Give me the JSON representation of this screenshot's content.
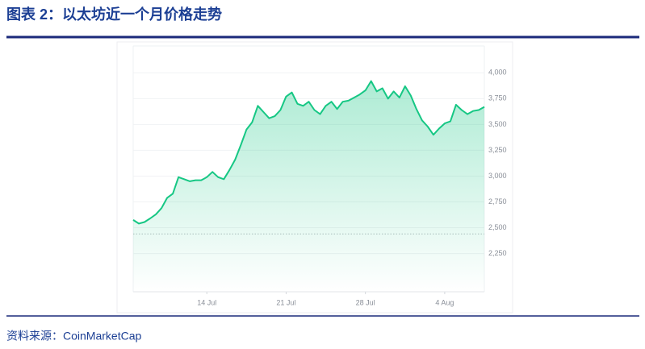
{
  "chart_data": {
    "type": "area",
    "title": "图表 2：以太坊近一个月价格走势",
    "source": "资料来源：CoinMarketCap",
    "color": "#16c784",
    "x": [
      7.5,
      8,
      8.5,
      9,
      9.5,
      10,
      10.5,
      11,
      11.5,
      12,
      12.5,
      13,
      13.5,
      14,
      14.5,
      15,
      15.5,
      16,
      16.5,
      17,
      17.5,
      18,
      18.5,
      19,
      19.5,
      20,
      20.5,
      21,
      21.5,
      22,
      22.5,
      23,
      23.5,
      24,
      24.5,
      25,
      25.5,
      26,
      26.5,
      27,
      27.5,
      28,
      28.5,
      29,
      29.5,
      30,
      30.5,
      31,
      31.5,
      32,
      32.5,
      33,
      33.5,
      34,
      34.5,
      35,
      35.5,
      36,
      36.5,
      37,
      37.5,
      38,
      38.5
    ],
    "values": [
      2575,
      2540,
      2555,
      2590,
      2630,
      2690,
      2790,
      2830,
      2990,
      2970,
      2950,
      2960,
      2960,
      2990,
      3040,
      2990,
      2970,
      3060,
      3160,
      3300,
      3450,
      3520,
      3680,
      3620,
      3560,
      3580,
      3640,
      3770,
      3810,
      3700,
      3680,
      3720,
      3640,
      3600,
      3680,
      3720,
      3650,
      3720,
      3730,
      3760,
      3790,
      3830,
      3920,
      3820,
      3850,
      3750,
      3820,
      3760,
      3870,
      3780,
      3650,
      3540,
      3480,
      3400,
      3460,
      3510,
      3530,
      3690,
      3640,
      3600,
      3630,
      3640,
      3670
    ],
    "baseline": 2440,
    "xlim": [
      7.5,
      38.5
    ],
    "xticks": [
      {
        "value": 14,
        "label": "14 Jul"
      },
      {
        "value": 21,
        "label": "21 Jul"
      },
      {
        "value": 28,
        "label": "28 Jul"
      },
      {
        "value": 35,
        "label": "4 Aug"
      }
    ],
    "ylim": [
      1880,
      4260
    ],
    "yticks": [
      {
        "value": 2250,
        "label": "2,250"
      },
      {
        "value": 2500,
        "label": "2,500"
      },
      {
        "value": 2750,
        "label": "2,750"
      },
      {
        "value": 3000,
        "label": "3,000"
      },
      {
        "value": 3250,
        "label": "3,250"
      },
      {
        "value": 3500,
        "label": "3,500"
      },
      {
        "value": 3750,
        "label": "3,750"
      },
      {
        "value": 4000,
        "label": "4,000"
      }
    ],
    "grid": true
  }
}
